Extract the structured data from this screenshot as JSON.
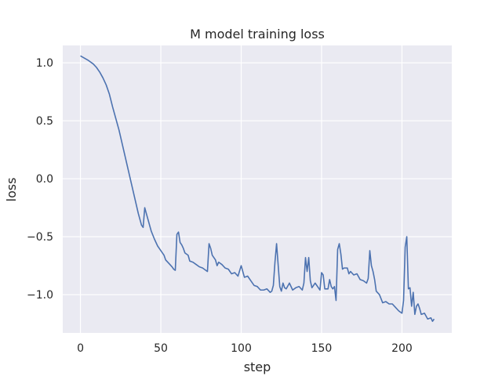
{
  "chart_data": {
    "type": "line",
    "title": "M model training loss",
    "xlabel": "step",
    "ylabel": "loss",
    "xlim": [
      -11,
      231
    ],
    "ylim": [
      -1.33,
      1.15
    ],
    "grid": true,
    "background": "#eaeaf2",
    "grid_color": "#ffffff",
    "line_color": "#4c72b0",
    "x_ticks": [
      0,
      50,
      100,
      150,
      200
    ],
    "x_tick_labels": [
      "0",
      "50",
      "100",
      "150",
      "200"
    ],
    "y_ticks": [
      1.0,
      0.5,
      0.0,
      -0.5,
      -1.0
    ],
    "y_tick_labels": [
      "1.0",
      "0.5",
      "0.0",
      "−0.5",
      "−1.0"
    ],
    "series": [
      {
        "x": [
          0,
          5,
          8,
          10,
          12,
          14,
          16,
          18,
          20,
          22,
          24,
          26,
          28,
          30,
          32,
          34,
          36,
          38,
          39,
          40,
          42,
          44,
          46,
          48,
          50,
          52,
          53,
          55,
          57,
          58,
          59,
          60,
          61,
          62,
          63,
          64,
          65,
          66,
          67,
          68,
          70,
          72,
          74,
          76,
          78,
          79,
          80,
          81,
          82,
          84,
          85,
          86,
          88,
          90,
          92,
          94,
          96,
          98,
          100,
          101,
          102,
          104,
          106,
          108,
          110,
          112,
          114,
          116,
          118,
          119,
          120,
          121,
          122,
          124,
          125,
          126,
          127,
          128,
          130,
          132,
          134,
          136,
          138,
          139,
          140,
          141,
          142,
          143,
          144,
          146,
          148,
          149,
          150,
          151,
          152,
          154,
          155,
          156,
          157,
          158,
          159,
          160,
          161,
          162,
          163,
          164,
          166,
          167,
          168,
          170,
          172,
          174,
          176,
          178,
          179,
          180,
          181,
          182,
          183,
          184,
          186,
          188,
          190,
          192,
          194,
          196,
          198,
          200,
          201,
          202,
          203,
          204,
          205,
          206,
          207,
          208,
          209,
          210,
          211,
          212,
          214,
          216,
          218,
          219,
          220
        ],
        "y": [
          1.06,
          1.02,
          0.99,
          0.96,
          0.92,
          0.87,
          0.81,
          0.73,
          0.62,
          0.52,
          0.42,
          0.3,
          0.18,
          0.06,
          -0.06,
          -0.18,
          -0.3,
          -0.4,
          -0.42,
          -0.25,
          -0.35,
          -0.45,
          -0.52,
          -0.58,
          -0.62,
          -0.66,
          -0.7,
          -0.73,
          -0.76,
          -0.78,
          -0.79,
          -0.48,
          -0.46,
          -0.55,
          -0.57,
          -0.6,
          -0.64,
          -0.65,
          -0.66,
          -0.71,
          -0.72,
          -0.74,
          -0.76,
          -0.77,
          -0.79,
          -0.8,
          -0.56,
          -0.6,
          -0.66,
          -0.7,
          -0.75,
          -0.72,
          -0.74,
          -0.77,
          -0.78,
          -0.82,
          -0.81,
          -0.84,
          -0.75,
          -0.8,
          -0.85,
          -0.84,
          -0.88,
          -0.92,
          -0.93,
          -0.96,
          -0.96,
          -0.95,
          -0.98,
          -0.97,
          -0.92,
          -0.72,
          -0.56,
          -0.93,
          -0.97,
          -0.9,
          -0.94,
          -0.95,
          -0.9,
          -0.96,
          -0.94,
          -0.93,
          -0.96,
          -0.9,
          -0.68,
          -0.8,
          -0.68,
          -0.88,
          -0.94,
          -0.9,
          -0.94,
          -0.96,
          -0.81,
          -0.83,
          -0.95,
          -0.95,
          -0.87,
          -0.93,
          -0.95,
          -0.93,
          -1.05,
          -0.61,
          -0.56,
          -0.65,
          -0.78,
          -0.77,
          -0.77,
          -0.82,
          -0.8,
          -0.83,
          -0.82,
          -0.87,
          -0.88,
          -0.9,
          -0.86,
          -0.62,
          -0.75,
          -0.8,
          -0.87,
          -0.97,
          -1.0,
          -1.07,
          -1.06,
          -1.08,
          -1.08,
          -1.11,
          -1.14,
          -1.16,
          -1.05,
          -0.59,
          -0.5,
          -0.95,
          -0.94,
          -1.1,
          -0.98,
          -1.17,
          -1.1,
          -1.08,
          -1.12,
          -1.17,
          -1.16,
          -1.21,
          -1.2,
          -1.23,
          -1.21
        ]
      }
    ]
  }
}
